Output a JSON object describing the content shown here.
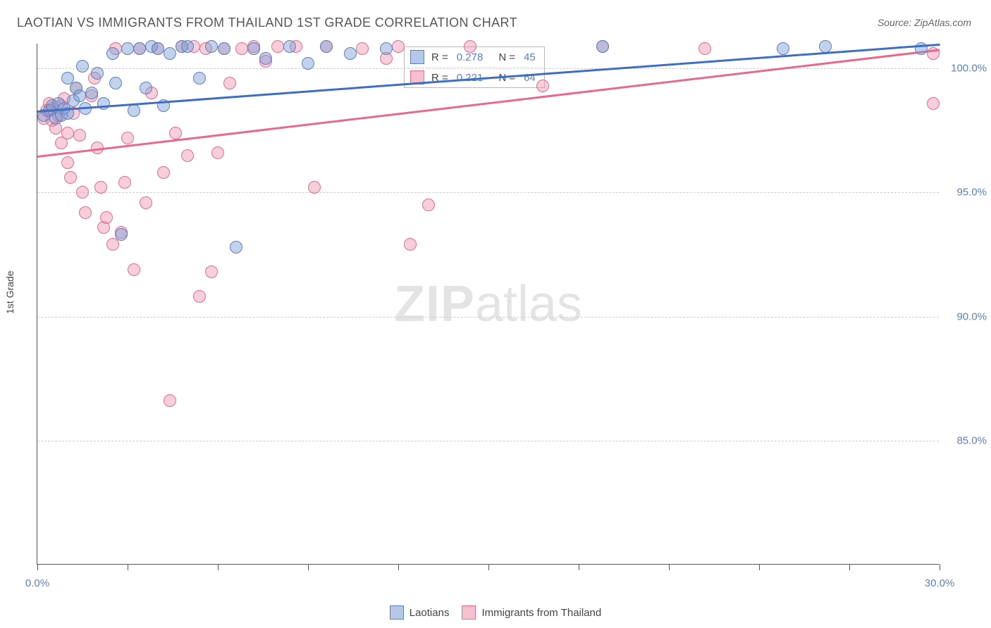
{
  "title": "LAOTIAN VS IMMIGRANTS FROM THAILAND 1ST GRADE CORRELATION CHART",
  "source": "Source: ZipAtlas.com",
  "axis": {
    "ylabel": "1st Grade",
    "xlim": [
      0,
      30
    ],
    "ylim": [
      80,
      101
    ],
    "yticks": [
      {
        "v": 85,
        "label": "85.0%"
      },
      {
        "v": 90,
        "label": "90.0%"
      },
      {
        "v": 95,
        "label": "95.0%"
      },
      {
        "v": 100,
        "label": "100.0%"
      }
    ],
    "xtick_values": [
      0,
      3,
      6,
      9,
      12,
      15,
      18,
      21,
      24,
      27,
      30
    ],
    "xlabels": [
      {
        "v": 0,
        "label": "0.0%"
      },
      {
        "v": 30,
        "label": "30.0%"
      }
    ],
    "grid_color": "#cccccc",
    "tick_label_color": "#5b7fbb"
  },
  "series": {
    "laotians": {
      "label": "Laotians",
      "fill": "rgba(120,155,214,0.45)",
      "stroke": "#5b7fbb",
      "line_color": "#3f6ec2",
      "trend": {
        "x1": 0,
        "y1": 98.3,
        "x2": 30,
        "y2": 101.0
      },
      "R": "0.278",
      "N": "45",
      "points": [
        [
          0.2,
          98.1
        ],
        [
          0.4,
          98.3
        ],
        [
          0.5,
          98.5
        ],
        [
          0.6,
          98.0
        ],
        [
          0.7,
          98.6
        ],
        [
          0.8,
          98.1
        ],
        [
          0.9,
          98.4
        ],
        [
          1.0,
          99.6
        ],
        [
          1.0,
          98.2
        ],
        [
          1.2,
          98.7
        ],
        [
          1.3,
          99.2
        ],
        [
          1.4,
          98.9
        ],
        [
          1.5,
          100.1
        ],
        [
          1.6,
          98.4
        ],
        [
          1.8,
          99.0
        ],
        [
          2.0,
          99.8
        ],
        [
          2.2,
          98.6
        ],
        [
          2.5,
          100.6
        ],
        [
          2.6,
          99.4
        ],
        [
          2.8,
          93.3
        ],
        [
          3.0,
          100.8
        ],
        [
          3.2,
          98.3
        ],
        [
          3.4,
          100.8
        ],
        [
          3.6,
          99.2
        ],
        [
          3.8,
          100.9
        ],
        [
          4.0,
          100.8
        ],
        [
          4.2,
          98.5
        ],
        [
          4.4,
          100.6
        ],
        [
          4.8,
          100.9
        ],
        [
          5.0,
          100.9
        ],
        [
          5.4,
          99.6
        ],
        [
          5.8,
          100.9
        ],
        [
          6.2,
          100.8
        ],
        [
          6.6,
          92.8
        ],
        [
          7.2,
          100.8
        ],
        [
          7.6,
          100.4
        ],
        [
          8.4,
          100.9
        ],
        [
          9.0,
          100.2
        ],
        [
          9.6,
          100.9
        ],
        [
          10.4,
          100.6
        ],
        [
          11.6,
          100.8
        ],
        [
          18.8,
          100.9
        ],
        [
          24.8,
          100.8
        ],
        [
          26.2,
          100.9
        ],
        [
          29.4,
          100.8
        ]
      ]
    },
    "thailand": {
      "label": "Immigrants from Thailand",
      "fill": "rgba(236,140,168,0.42)",
      "stroke": "#e6698f",
      "line_color": "#e6698f",
      "trend": {
        "x1": 0,
        "y1": 96.5,
        "x2": 30,
        "y2": 100.8
      },
      "R": "0.221",
      "N": "64",
      "points": [
        [
          0.2,
          98.0
        ],
        [
          0.3,
          98.3
        ],
        [
          0.4,
          98.6
        ],
        [
          0.5,
          97.9
        ],
        [
          0.5,
          98.4
        ],
        [
          0.6,
          97.6
        ],
        [
          0.7,
          98.1
        ],
        [
          0.8,
          98.5
        ],
        [
          0.8,
          97.0
        ],
        [
          0.9,
          98.8
        ],
        [
          1.0,
          97.4
        ],
        [
          1.0,
          96.2
        ],
        [
          1.1,
          95.6
        ],
        [
          1.2,
          98.2
        ],
        [
          1.3,
          99.2
        ],
        [
          1.4,
          97.3
        ],
        [
          1.5,
          95.0
        ],
        [
          1.6,
          94.2
        ],
        [
          1.8,
          98.9
        ],
        [
          1.9,
          99.6
        ],
        [
          2.0,
          96.8
        ],
        [
          2.1,
          95.2
        ],
        [
          2.2,
          93.6
        ],
        [
          2.3,
          94.0
        ],
        [
          2.5,
          92.9
        ],
        [
          2.6,
          100.8
        ],
        [
          2.8,
          93.4
        ],
        [
          2.9,
          95.4
        ],
        [
          3.0,
          97.2
        ],
        [
          3.2,
          91.9
        ],
        [
          3.4,
          100.8
        ],
        [
          3.6,
          94.6
        ],
        [
          3.8,
          99.0
        ],
        [
          4.0,
          100.8
        ],
        [
          4.2,
          95.8
        ],
        [
          4.4,
          86.6
        ],
        [
          4.6,
          97.4
        ],
        [
          4.8,
          100.9
        ],
        [
          5.0,
          96.5
        ],
        [
          5.2,
          100.9
        ],
        [
          5.4,
          90.8
        ],
        [
          5.6,
          100.8
        ],
        [
          5.8,
          91.8
        ],
        [
          6.0,
          96.6
        ],
        [
          6.2,
          100.8
        ],
        [
          6.4,
          99.4
        ],
        [
          6.8,
          100.8
        ],
        [
          7.2,
          100.9
        ],
        [
          7.6,
          100.3
        ],
        [
          8.0,
          100.9
        ],
        [
          8.6,
          100.9
        ],
        [
          9.2,
          95.2
        ],
        [
          9.6,
          100.9
        ],
        [
          10.8,
          100.8
        ],
        [
          11.6,
          100.4
        ],
        [
          12.0,
          100.9
        ],
        [
          12.4,
          92.9
        ],
        [
          13.0,
          94.5
        ],
        [
          14.4,
          100.9
        ],
        [
          16.8,
          99.3
        ],
        [
          18.8,
          100.9
        ],
        [
          22.2,
          100.8
        ],
        [
          29.8,
          100.6
        ],
        [
          29.8,
          98.6
        ]
      ]
    }
  },
  "watermark": {
    "zip": "ZIP",
    "atlas": "atlas"
  },
  "statbox": {
    "R_label": "R =",
    "N_label": "N ="
  },
  "legend": {
    "swatch_blue_fill": "rgba(120,155,214,0.55)",
    "swatch_blue_stroke": "#5b7fbb",
    "swatch_pink_fill": "rgba(236,140,168,0.55)",
    "swatch_pink_stroke": "#e6698f"
  }
}
